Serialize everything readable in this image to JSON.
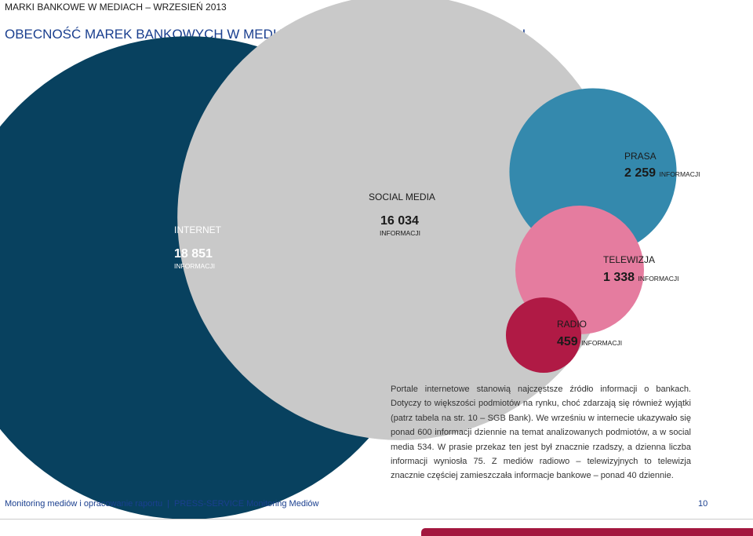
{
  "header": {
    "title": "MARKI BANKOWE W MEDIACH – WRZESIEŃ 2013"
  },
  "page_title": "OBECNOŚĆ MAREK BANKOWYCH W MEDIACH W ZALEŻNOŚCI OD ICH RODZAJU",
  "chart_data": {
    "type": "bubble",
    "title": "OBECNOŚĆ MAREK BANKOWYCH W MEDIACH W ZALEŻNOŚCI OD ICH RODZAJU",
    "unit": "INFORMACJI",
    "series": [
      {
        "name": "INTERNET",
        "value": 18851,
        "display": "18 851",
        "color": "#08415f"
      },
      {
        "name": "SOCIAL MEDIA",
        "value": 16034,
        "display": "16 034",
        "color": "#c9c9c9"
      },
      {
        "name": "PRASA",
        "value": 2259,
        "display": "2 259",
        "color": "#3489ad"
      },
      {
        "name": "TELEWIZJA",
        "value": 1338,
        "display": "1 338",
        "color": "#e57c9f"
      },
      {
        "name": "RADIO",
        "value": 459,
        "display": "459",
        "color": "#b01a45"
      }
    ]
  },
  "description": "Portale internetowe stanowią najczęstsze źródło informacji o bankach. Dotyczy to większości podmiotów na rynku, choć zdarzają się również wyjątki (patrz tabela na str. 10 – SGB Bank). We wrześniu w internecie ukazywało się ponad 600 informacji dziennie na temat analizowanych podmiotów, a w social media 534. W prasie przekaz ten jest był znacznie rzadszy, a dzienna liczba informacji wyniosła 75. Z mediów radiowo – telewizyjnych to telewizja znacznie częściej zamieszczała informacje bankowe – ponad 40 dziennie.",
  "footer": {
    "left": "Monitoring mediów i opracowanie raportu",
    "separator": "|",
    "right": "PRESS-SERVICE Monitoring Mediów",
    "page": "10"
  }
}
